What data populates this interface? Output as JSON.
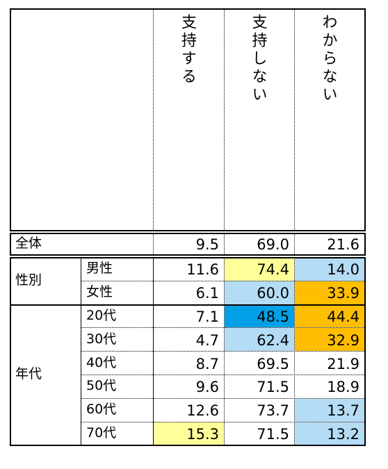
{
  "chart_data": {
    "type": "table",
    "columns": [
      "支持する",
      "支持しない",
      "わからない"
    ],
    "overall": {
      "label": "全体",
      "values": [
        "9.5",
        "69.0",
        "21.6"
      ]
    },
    "groups": [
      {
        "label": "性別",
        "rows": [
          {
            "label": "男性",
            "values": [
              "11.6",
              "74.4",
              "14.0"
            ]
          },
          {
            "label": "女性",
            "values": [
              "6.1",
              "60.0",
              "33.9"
            ]
          }
        ]
      },
      {
        "label": "年代",
        "rows": [
          {
            "label": "20代",
            "values": [
              "7.1",
              "48.5",
              "44.4"
            ]
          },
          {
            "label": "30代",
            "values": [
              "4.7",
              "62.4",
              "32.9"
            ]
          },
          {
            "label": "40代",
            "values": [
              "8.7",
              "69.5",
              "21.9"
            ]
          },
          {
            "label": "50代",
            "values": [
              "9.6",
              "71.5",
              "18.9"
            ]
          },
          {
            "label": "60代",
            "values": [
              "12.6",
              "73.7",
              "13.7"
            ]
          },
          {
            "label": "70代",
            "values": [
              "15.3",
              "71.5",
              "13.2"
            ]
          }
        ]
      }
    ],
    "highlight_colors": {
      "yellow": "#ffff99",
      "light-blue": "#b4dcf5",
      "blue": "#00a0e6",
      "orange": "#ffbe00"
    },
    "highlights": [
      [
        "none",
        "none",
        "none"
      ],
      [
        "none",
        "yellow",
        "light-blue"
      ],
      [
        "none",
        "light-blue",
        "orange"
      ],
      [
        "none",
        "blue",
        "orange"
      ],
      [
        "none",
        "light-blue",
        "orange"
      ],
      [
        "none",
        "none",
        "none"
      ],
      [
        "none",
        "none",
        "none"
      ],
      [
        "none",
        "none",
        "light-blue"
      ],
      [
        "yellow",
        "none",
        "light-blue"
      ]
    ]
  }
}
